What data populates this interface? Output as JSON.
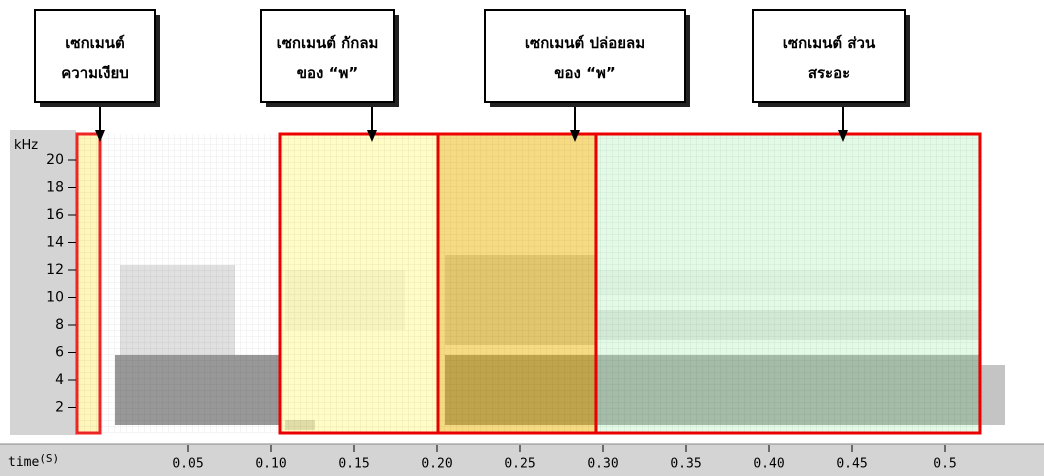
{
  "labels": [
    {
      "lines": [
        "เซกเมนต์",
        "ความเงียบ"
      ]
    },
    {
      "lines": [
        "เซกเมนต์  กักลม",
        "ของ “พ”"
      ]
    },
    {
      "lines": [
        "เซกเมนต์ ปล่อยลม",
        "ของ “พ”"
      ]
    },
    {
      "lines": [
        "เซกเมนต์ ส่วน",
        "สระอะ"
      ]
    }
  ],
  "y_axis": {
    "unit": "kHz",
    "ticks": [
      "20",
      "18",
      "16",
      "14",
      "12",
      "10",
      "8",
      "6",
      "4",
      "2"
    ]
  },
  "x_axis": {
    "label": "time",
    "unit": "(S)",
    "ticks": [
      "0.05",
      "0.10",
      "0.15",
      "0.20",
      "0.25",
      "0.30",
      "0.35",
      "0.40",
      "0.45",
      "0.5"
    ]
  }
}
